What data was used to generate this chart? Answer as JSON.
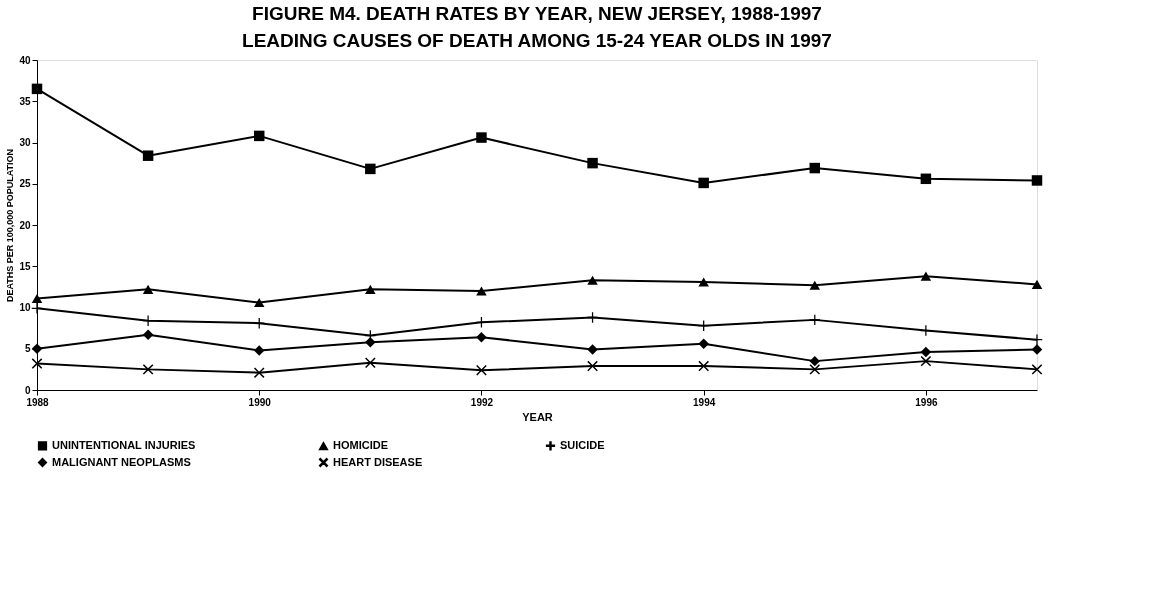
{
  "chart_data": {
    "type": "line",
    "title": "FIGURE M4.  DEATH RATES BY YEAR, NEW JERSEY, 1988-1997",
    "subtitle": "LEADING CAUSES OF DEATH AMONG 15-24 YEAR OLDS IN 1997",
    "xlabel": "YEAR",
    "ylabel": "DEATHS PER 100,000 POPULATION",
    "x": [
      1988,
      1989,
      1990,
      1991,
      1992,
      1993,
      1994,
      1995,
      1996,
      1997
    ],
    "xlim": [
      1988,
      1997
    ],
    "xticks": [
      1988,
      1990,
      1992,
      1994,
      1996
    ],
    "ylim": [
      0,
      40
    ],
    "yticks": [
      0,
      5,
      10,
      15,
      20,
      25,
      30,
      35,
      40
    ],
    "grid": false,
    "legend": "bottom",
    "line_style": "solid",
    "series": [
      {
        "name": "UNINTENTIONAL INJURIES",
        "color": "#000000",
        "marker": "square",
        "values": [
          36.5,
          28.4,
          30.8,
          26.8,
          30.6,
          27.5,
          25.1,
          26.9,
          25.6,
          25.4
        ]
      },
      {
        "name": "HOMICIDE",
        "color": "#000000",
        "marker": "triangle",
        "values": [
          11.1,
          12.2,
          10.6,
          12.2,
          12.0,
          13.3,
          13.1,
          12.7,
          13.8,
          12.8
        ]
      },
      {
        "name": "SUICIDE",
        "color": "#000000",
        "marker": "cross",
        "values": [
          9.9,
          8.4,
          8.1,
          6.6,
          8.2,
          8.8,
          7.8,
          8.5,
          7.2,
          6.1
        ]
      },
      {
        "name": "MALIGNANT NEOPLASMS",
        "color": "#000000",
        "marker": "diamond",
        "values": [
          5.0,
          6.7,
          4.8,
          5.8,
          6.4,
          4.9,
          5.6,
          3.5,
          4.6,
          4.9
        ]
      },
      {
        "name": "HEART DISEASE",
        "color": "#000000",
        "marker": "x",
        "values": [
          3.2,
          2.5,
          2.1,
          3.3,
          2.4,
          2.9,
          2.9,
          2.5,
          3.5,
          2.5
        ]
      }
    ]
  }
}
